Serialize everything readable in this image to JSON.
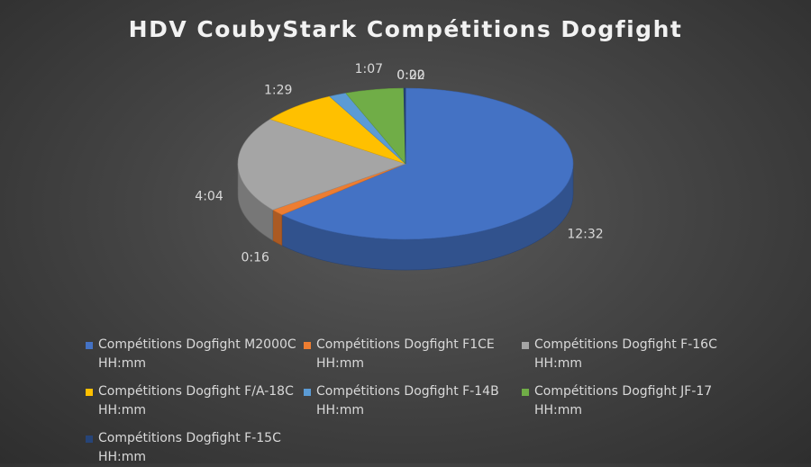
{
  "chart_data": {
    "type": "pie",
    "title": "HDV CoubyStark Compétitions Dogfight",
    "legend_position": "bottom",
    "three_d": true,
    "slices": [
      {
        "name": "Compétitions Dogfight M2000C HH:mm",
        "label": "12:32",
        "minutes": 752,
        "color": "#4472C4"
      },
      {
        "name": "Compétitions Dogfight F1CE HH:mm",
        "label": "0:16",
        "minutes": 16,
        "color": "#ED7D31"
      },
      {
        "name": "Compétitions Dogfight F-16C HH:mm",
        "label": "4:04",
        "minutes": 244,
        "color": "#A5A5A5"
      },
      {
        "name": "Compétitions Dogfight F/A-18C HH:mm",
        "label": "1:29",
        "minutes": 89,
        "color": "#FFC000"
      },
      {
        "name": "Compétitions Dogfight F-14B HH:mm",
        "label": "0:20",
        "minutes": 20,
        "color": "#5B9BD5"
      },
      {
        "name": "Compétitions Dogfight JF-17 HH:mm",
        "label": "1:07",
        "minutes": 67,
        "color": "#70AD47"
      },
      {
        "name": "Compétitions Dogfight F-15C HH:mm",
        "label": "0:02",
        "minutes": 2,
        "color": "#264478"
      }
    ]
  }
}
